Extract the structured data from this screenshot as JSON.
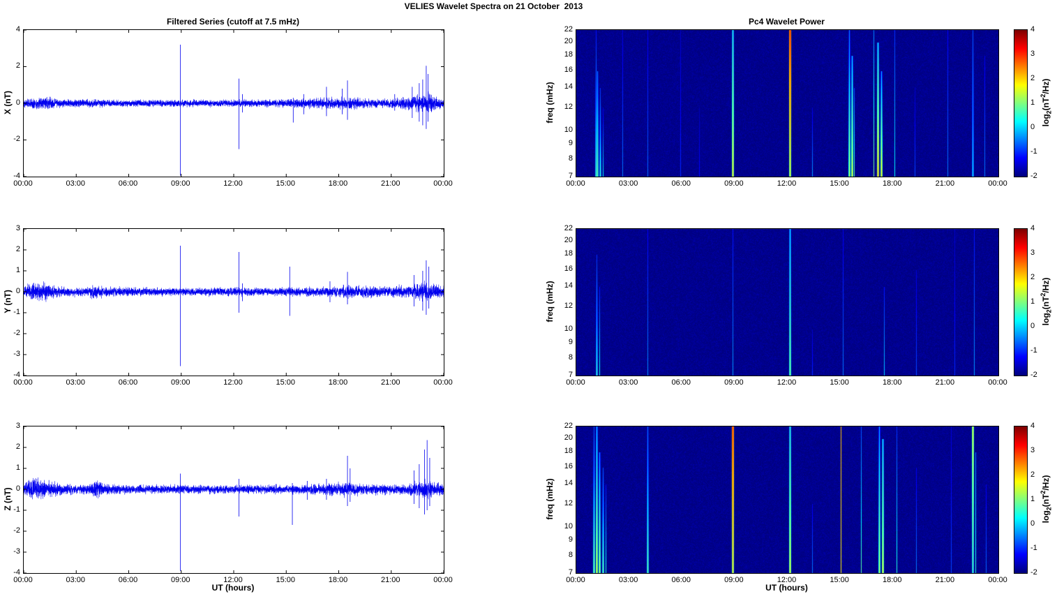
{
  "figure": {
    "title": "VELIES Wavelet Spectra on 21 October  2013",
    "left_column_title": "Filtered Series (cutoff at 7.5 mHz)",
    "right_column_title": "Pc4 Wavelet Power",
    "xlabel": "UT (hours)",
    "x_tick_labels": [
      "00:00",
      "03:00",
      "06:00",
      "09:00",
      "12:00",
      "15:00",
      "18:00",
      "21:00",
      "00:00"
    ],
    "x_range_hours": [
      0,
      24
    ],
    "signal_color": "#0000ee",
    "spectrogram_background": "#000080"
  },
  "colorbar": {
    "min": -2,
    "max": 4,
    "ticks": [
      4,
      3,
      2,
      1,
      0,
      -1,
      -2
    ],
    "colormap": "jet",
    "label_parts": {
      "pre": "log",
      "sub": "2",
      "mid": "(nT",
      "sup": "2",
      "post": "/Hz)"
    }
  },
  "chart_data": [
    {
      "type": "line",
      "panel": "X",
      "ylabel": "X (nT)",
      "ylim": [
        -4,
        4
      ],
      "yticks": [
        4,
        2,
        0,
        -2,
        -4
      ],
      "seed": 101,
      "noise_envelope": [
        [
          0,
          0.1
        ],
        [
          0.6,
          0.14
        ],
        [
          1.2,
          0.17
        ],
        [
          1.9,
          0.12
        ],
        [
          2.5,
          0.1
        ],
        [
          3.5,
          0.09
        ],
        [
          4.2,
          0.1
        ],
        [
          5,
          0.08
        ],
        [
          7,
          0.08
        ],
        [
          9,
          0.09
        ],
        [
          11,
          0.08
        ],
        [
          13,
          0.09
        ],
        [
          14.5,
          0.09
        ],
        [
          16,
          0.12
        ],
        [
          17,
          0.13
        ],
        [
          18,
          0.14
        ],
        [
          18.7,
          0.16
        ],
        [
          19.3,
          0.12
        ],
        [
          20.3,
          0.1
        ],
        [
          21.2,
          0.12
        ],
        [
          22,
          0.15
        ],
        [
          22.6,
          0.2
        ],
        [
          23.0,
          0.26
        ],
        [
          23.4,
          0.18
        ],
        [
          24,
          0.13
        ]
      ],
      "spikes": [
        {
          "t": 8.95,
          "hi": 3.2,
          "lo": -3.95
        },
        {
          "t": 12.3,
          "hi": 1.35,
          "lo": -2.5
        },
        {
          "t": 12.5,
          "hi": 0.5,
          "lo": -0.5
        },
        {
          "t": 15.4,
          "hi": 0.3,
          "lo": -1.05
        },
        {
          "t": 16.0,
          "hi": 0.5,
          "lo": -0.6
        },
        {
          "t": 17.3,
          "hi": 0.9,
          "lo": -0.7
        },
        {
          "t": 18.2,
          "hi": 0.8,
          "lo": -0.6
        },
        {
          "t": 18.5,
          "hi": 1.25,
          "lo": -0.9
        },
        {
          "t": 21.2,
          "hi": 0.5,
          "lo": -0.4
        },
        {
          "t": 22.2,
          "hi": 0.9,
          "lo": -0.8
        },
        {
          "t": 22.6,
          "hi": 1.1,
          "lo": -1.0
        },
        {
          "t": 22.8,
          "hi": 1.3,
          "lo": -1.2
        },
        {
          "t": 23.0,
          "hi": 2.05,
          "lo": -1.4
        },
        {
          "t": 23.1,
          "hi": 1.6,
          "lo": -1.0
        }
      ]
    },
    {
      "type": "line",
      "panel": "Y",
      "ylabel": "Y (nT)",
      "ylim": [
        -4,
        3
      ],
      "yticks": [
        3,
        2,
        1,
        0,
        -1,
        -2,
        -3,
        -4
      ],
      "seed": 202,
      "noise_envelope": [
        [
          0,
          0.12
        ],
        [
          0.5,
          0.18
        ],
        [
          1.1,
          0.21
        ],
        [
          1.6,
          0.14
        ],
        [
          2.2,
          0.1
        ],
        [
          3.7,
          0.1
        ],
        [
          4.1,
          0.17
        ],
        [
          4.6,
          0.11
        ],
        [
          6,
          0.09
        ],
        [
          9,
          0.08
        ],
        [
          12,
          0.09
        ],
        [
          15,
          0.09
        ],
        [
          16.5,
          0.1
        ],
        [
          18,
          0.12
        ],
        [
          18.8,
          0.14
        ],
        [
          19.6,
          0.13
        ],
        [
          21,
          0.12
        ],
        [
          22.2,
          0.15
        ],
        [
          22.9,
          0.22
        ],
        [
          23.4,
          0.16
        ],
        [
          24,
          0.12
        ]
      ],
      "spikes": [
        {
          "t": 8.95,
          "hi": 2.2,
          "lo": -3.55
        },
        {
          "t": 12.3,
          "hi": 1.9,
          "lo": -1.0
        },
        {
          "t": 12.5,
          "hi": 0.4,
          "lo": -0.45
        },
        {
          "t": 15.2,
          "hi": 1.2,
          "lo": -1.15
        },
        {
          "t": 17.5,
          "hi": 0.5,
          "lo": -0.5
        },
        {
          "t": 18.5,
          "hi": 0.95,
          "lo": -0.6
        },
        {
          "t": 22.3,
          "hi": 0.8,
          "lo": -0.7
        },
        {
          "t": 22.8,
          "hi": 1.0,
          "lo": -0.9
        },
        {
          "t": 23.0,
          "hi": 1.5,
          "lo": -1.1
        },
        {
          "t": 23.15,
          "hi": 1.2,
          "lo": -0.8
        }
      ]
    },
    {
      "type": "line",
      "panel": "Z",
      "ylabel": "Z (nT)",
      "ylim": [
        -4,
        3
      ],
      "yticks": [
        3,
        2,
        1,
        0,
        -1,
        -2,
        -3,
        -4
      ],
      "seed": 303,
      "noise_envelope": [
        [
          0,
          0.13
        ],
        [
          0.5,
          0.21
        ],
        [
          1.1,
          0.23
        ],
        [
          1.7,
          0.15
        ],
        [
          2.3,
          0.11
        ],
        [
          3.7,
          0.11
        ],
        [
          4.1,
          0.19
        ],
        [
          4.6,
          0.12
        ],
        [
          6,
          0.09
        ],
        [
          9,
          0.09
        ],
        [
          12,
          0.09
        ],
        [
          15,
          0.1
        ],
        [
          16.5,
          0.11
        ],
        [
          17.5,
          0.12
        ],
        [
          18.3,
          0.16
        ],
        [
          18.8,
          0.14
        ],
        [
          19.5,
          0.12
        ],
        [
          21,
          0.11
        ],
        [
          22,
          0.13
        ],
        [
          22.6,
          0.17
        ],
        [
          23.1,
          0.22
        ],
        [
          23.5,
          0.16
        ],
        [
          24,
          0.13
        ]
      ],
      "spikes": [
        {
          "t": 8.95,
          "hi": 0.75,
          "lo": -3.9
        },
        {
          "t": 12.3,
          "hi": 0.5,
          "lo": -1.3
        },
        {
          "t": 15.35,
          "hi": 0.3,
          "lo": -1.7
        },
        {
          "t": 16.2,
          "hi": 0.4,
          "lo": -0.5
        },
        {
          "t": 17.3,
          "hi": 0.5,
          "lo": -0.5
        },
        {
          "t": 18.5,
          "hi": 1.6,
          "lo": -0.8
        },
        {
          "t": 18.65,
          "hi": 1.0,
          "lo": -0.6
        },
        {
          "t": 22.3,
          "hi": 0.9,
          "lo": -0.7
        },
        {
          "t": 22.6,
          "hi": 1.2,
          "lo": -0.9
        },
        {
          "t": 22.9,
          "hi": 1.9,
          "lo": -1.2
        },
        {
          "t": 23.05,
          "hi": 2.35,
          "lo": -1.0
        },
        {
          "t": 23.2,
          "hi": 1.5,
          "lo": -0.8
        }
      ]
    },
    {
      "type": "heatmap",
      "panel": "X",
      "ylabel": "freq (mHz)",
      "flim": [
        7,
        22
      ],
      "fticks": [
        22,
        20,
        18,
        16,
        14,
        12,
        10,
        9,
        8,
        7
      ],
      "scale": "log",
      "vlim": [
        -2,
        4
      ],
      "seed": 11,
      "streaks": [
        {
          "t": 1.1,
          "f1": 7,
          "f2": 22,
          "vb": 0.8,
          "vt": -1.2,
          "w": 2
        },
        {
          "t": 1.2,
          "f1": 7,
          "f2": 16,
          "vb": 1.0,
          "vt": -0.5,
          "w": 2
        },
        {
          "t": 1.35,
          "f1": 7,
          "f2": 14,
          "vb": 0.6,
          "vt": -1.0,
          "w": 2
        },
        {
          "t": 1.5,
          "f1": 7,
          "f2": 12,
          "vb": 0.2,
          "vt": -1.5,
          "w": 1
        },
        {
          "t": 2.6,
          "f1": 7,
          "f2": 22,
          "vb": -0.5,
          "vt": -1.5,
          "w": 1
        },
        {
          "t": 4.05,
          "f1": 7,
          "f2": 22,
          "vb": -0.6,
          "vt": -1.4,
          "w": 1
        },
        {
          "t": 5.9,
          "f1": 7,
          "f2": 22,
          "vb": -1.0,
          "vt": -1.6,
          "w": 1
        },
        {
          "t": 7.0,
          "f1": 7,
          "f2": 12,
          "vb": -1.2,
          "vt": -1.7,
          "w": 1
        },
        {
          "t": 8.9,
          "f1": 7,
          "f2": 22,
          "vb": 2.0,
          "vt": 0.5,
          "w": 2
        },
        {
          "t": 12.15,
          "f1": 7,
          "f2": 22,
          "vb": 1.8,
          "vt": 3.4,
          "w": 2
        },
        {
          "t": 13.4,
          "f1": 7,
          "f2": 12,
          "vb": -0.3,
          "vt": -1.5,
          "w": 1
        },
        {
          "t": 15.5,
          "f1": 7,
          "f2": 22,
          "vb": 1.5,
          "vt": -0.5,
          "w": 2
        },
        {
          "t": 15.65,
          "f1": 7,
          "f2": 18,
          "vb": 1.8,
          "vt": 0.0,
          "w": 2
        },
        {
          "t": 15.8,
          "f1": 7,
          "f2": 14,
          "vb": 0.8,
          "vt": -0.8,
          "w": 1
        },
        {
          "t": 16.9,
          "f1": 7,
          "f2": 22,
          "vb": 1.0,
          "vt": -0.5,
          "w": 1
        },
        {
          "t": 17.15,
          "f1": 7,
          "f2": 20,
          "vb": 2.3,
          "vt": 0.3,
          "w": 2
        },
        {
          "t": 17.35,
          "f1": 7,
          "f2": 16,
          "vb": 2.0,
          "vt": -0.2,
          "w": 2
        },
        {
          "t": 18.1,
          "f1": 7,
          "f2": 22,
          "vb": 0.3,
          "vt": -1.0,
          "w": 1
        },
        {
          "t": 19.25,
          "f1": 7,
          "f2": 14,
          "vb": -0.8,
          "vt": -1.6,
          "w": 1
        },
        {
          "t": 21.1,
          "f1": 7,
          "f2": 22,
          "vb": -0.5,
          "vt": -1.3,
          "w": 1
        },
        {
          "t": 22.55,
          "f1": 7,
          "f2": 22,
          "vb": 0.3,
          "vt": -0.8,
          "w": 2
        },
        {
          "t": 23.2,
          "f1": 7,
          "f2": 18,
          "vb": -0.5,
          "vt": -1.4,
          "w": 1
        }
      ]
    },
    {
      "type": "heatmap",
      "panel": "Y",
      "ylabel": "freq (mHz)",
      "flim": [
        7,
        22
      ],
      "fticks": [
        22,
        20,
        18,
        16,
        14,
        12,
        10,
        9,
        8,
        7
      ],
      "scale": "log",
      "vlim": [
        -2,
        4
      ],
      "seed": 22,
      "streaks": [
        {
          "t": 1.15,
          "f1": 7,
          "f2": 18,
          "vb": 0.6,
          "vt": -1.0,
          "w": 2
        },
        {
          "t": 1.3,
          "f1": 7,
          "f2": 14,
          "vb": 0.4,
          "vt": -1.2,
          "w": 1
        },
        {
          "t": 4.05,
          "f1": 7,
          "f2": 22,
          "vb": -0.4,
          "vt": -1.3,
          "w": 1
        },
        {
          "t": 8.9,
          "f1": 7,
          "f2": 22,
          "vb": -0.3,
          "vt": -1.2,
          "w": 1
        },
        {
          "t": 12.15,
          "f1": 7,
          "f2": 22,
          "vb": 1.2,
          "vt": 0.2,
          "w": 2
        },
        {
          "t": 13.4,
          "f1": 7,
          "f2": 10,
          "vb": -1.0,
          "vt": -1.6,
          "w": 1
        },
        {
          "t": 15.15,
          "f1": 7,
          "f2": 22,
          "vb": -0.5,
          "vt": -1.4,
          "w": 1
        },
        {
          "t": 17.5,
          "f1": 7,
          "f2": 14,
          "vb": 0.0,
          "vt": -1.2,
          "w": 1
        },
        {
          "t": 19.3,
          "f1": 7,
          "f2": 16,
          "vb": -0.8,
          "vt": -1.5,
          "w": 1
        },
        {
          "t": 21.5,
          "f1": 7,
          "f2": 22,
          "vb": -1.0,
          "vt": -1.6,
          "w": 1
        },
        {
          "t": 22.6,
          "f1": 7,
          "f2": 22,
          "vb": -0.3,
          "vt": -1.2,
          "w": 1
        }
      ]
    },
    {
      "type": "heatmap",
      "panel": "Z",
      "ylabel": "freq (mHz)",
      "flim": [
        7,
        22
      ],
      "fticks": [
        22,
        20,
        18,
        16,
        14,
        12,
        10,
        9,
        8,
        7
      ],
      "scale": "log",
      "vlim": [
        -2,
        4
      ],
      "seed": 33,
      "streaks": [
        {
          "t": 1.0,
          "f1": 7,
          "f2": 22,
          "vb": 1.2,
          "vt": -0.8,
          "w": 2
        },
        {
          "t": 1.15,
          "f1": 7,
          "f2": 22,
          "vb": 1.8,
          "vt": 0.0,
          "w": 2
        },
        {
          "t": 1.3,
          "f1": 7,
          "f2": 18,
          "vb": 1.5,
          "vt": -0.3,
          "w": 2
        },
        {
          "t": 1.5,
          "f1": 7,
          "f2": 16,
          "vb": 1.0,
          "vt": -0.8,
          "w": 2
        },
        {
          "t": 1.65,
          "f1": 7,
          "f2": 14,
          "vb": 0.5,
          "vt": -1.2,
          "w": 1
        },
        {
          "t": 4.05,
          "f1": 7,
          "f2": 22,
          "vb": 1.0,
          "vt": -0.6,
          "w": 2
        },
        {
          "t": 8.9,
          "f1": 7,
          "f2": 22,
          "vb": 2.0,
          "vt": 3.3,
          "w": 2
        },
        {
          "t": 12.15,
          "f1": 7,
          "f2": 22,
          "vb": 1.8,
          "vt": 0.6,
          "w": 2
        },
        {
          "t": 13.4,
          "f1": 7,
          "f2": 12,
          "vb": -0.5,
          "vt": -1.4,
          "w": 1
        },
        {
          "t": 15.05,
          "f1": 7,
          "f2": 22,
          "vb": 1.8,
          "vt": 2.1,
          "w": 1
        },
        {
          "t": 16.2,
          "f1": 7,
          "f2": 22,
          "vb": 0.8,
          "vt": -0.8,
          "w": 1
        },
        {
          "t": 17.2,
          "f1": 7,
          "f2": 22,
          "vb": 1.5,
          "vt": -0.2,
          "w": 2
        },
        {
          "t": 17.4,
          "f1": 7,
          "f2": 20,
          "vb": 1.8,
          "vt": 0.3,
          "w": 2
        },
        {
          "t": 18.2,
          "f1": 7,
          "f2": 22,
          "vb": 0.5,
          "vt": -1.0,
          "w": 1
        },
        {
          "t": 19.3,
          "f1": 7,
          "f2": 16,
          "vb": -0.5,
          "vt": -1.4,
          "w": 1
        },
        {
          "t": 21.3,
          "f1": 7,
          "f2": 22,
          "vb": -0.8,
          "vt": -1.5,
          "w": 1
        },
        {
          "t": 22.55,
          "f1": 7,
          "f2": 22,
          "vb": 0.8,
          "vt": 1.8,
          "w": 2
        },
        {
          "t": 22.7,
          "f1": 7,
          "f2": 18,
          "vb": 0.5,
          "vt": -0.5,
          "w": 1
        },
        {
          "t": 23.3,
          "f1": 7,
          "f2": 14,
          "vb": -0.6,
          "vt": -1.4,
          "w": 1
        }
      ]
    }
  ]
}
